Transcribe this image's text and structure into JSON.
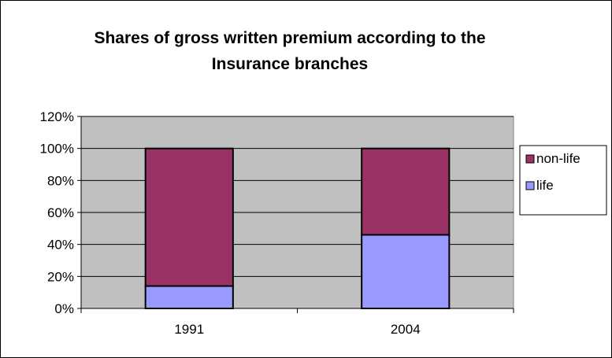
{
  "chart_data": {
    "type": "bar",
    "stacked": true,
    "title": "Shares of gross written premium according to the Insurance branches",
    "title_lines": [
      "Shares of gross written premium according to the",
      "Insurance branches"
    ],
    "categories": [
      "1991",
      "2004"
    ],
    "series": [
      {
        "name": "life",
        "values": [
          14,
          46
        ],
        "color": "#9999ff"
      },
      {
        "name": "non-life",
        "values": [
          86,
          54
        ],
        "color": "#993366"
      }
    ],
    "ylim": [
      0,
      120
    ],
    "yticks": [
      0,
      20,
      40,
      60,
      80,
      100,
      120
    ],
    "ytick_labels": [
      "0%",
      "20%",
      "40%",
      "60%",
      "80%",
      "100%",
      "120%"
    ],
    "xlabel": "",
    "ylabel": "",
    "grid": true,
    "plot_background": "#c0c0c0",
    "legend_position": "right",
    "legend_order": [
      "non-life",
      "life"
    ]
  }
}
